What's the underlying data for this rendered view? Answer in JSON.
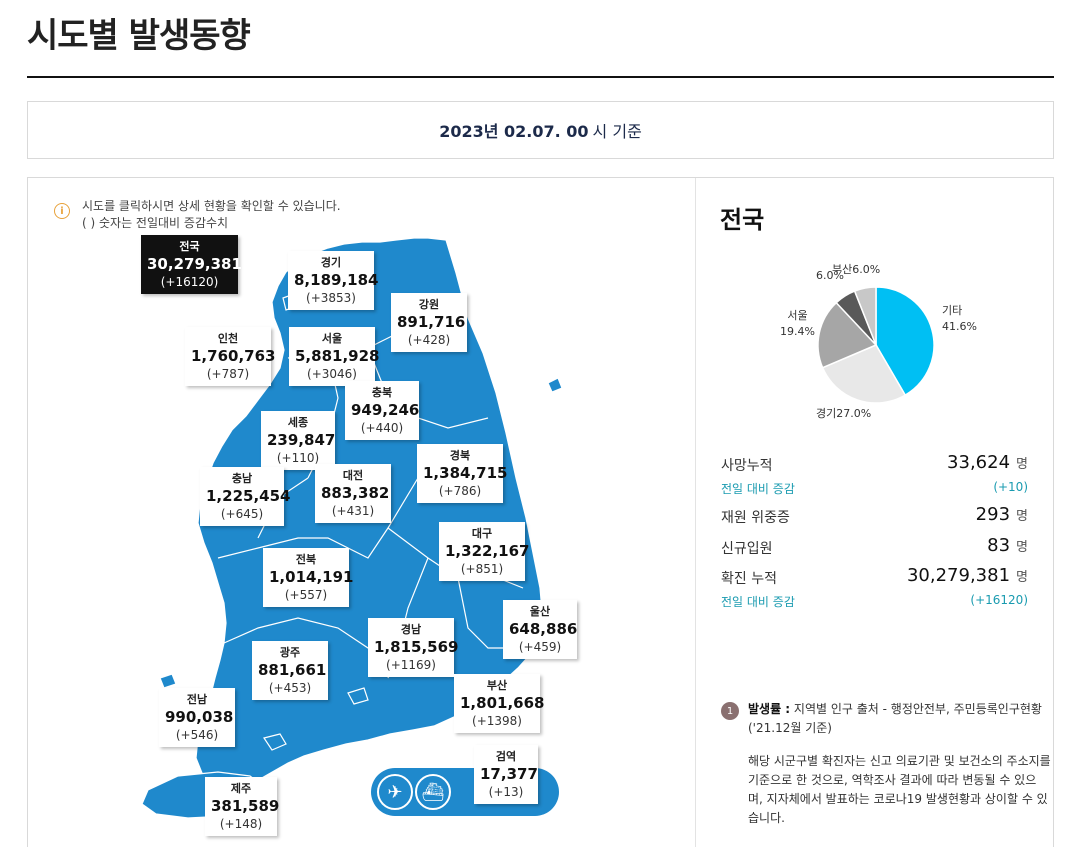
{
  "page_title": "시도별 발생동향",
  "date": {
    "value": "2023년 02.07. 00",
    "suffix": "시 기준"
  },
  "notice": {
    "icon": "info-icon",
    "line1": "시도를 클릭하시면 상세 현황을 확인할 수 있습니다.",
    "line2": "( ) 숫자는 전일대비 증감수치"
  },
  "colors": {
    "map_fill": "#1f89cc",
    "map_border": "#ffffff",
    "accent_teal": "#1a9bb0"
  },
  "regions": {
    "national": {
      "name": "전국",
      "count": "30,279,381",
      "delta": "(+16120)"
    },
    "gyeonggi": {
      "name": "경기",
      "count": "8,189,184",
      "delta": "(+3853)"
    },
    "gangwon": {
      "name": "강원",
      "count": "891,716",
      "delta": "(+428)"
    },
    "incheon": {
      "name": "인천",
      "count": "1,760,763",
      "delta": "(+787)"
    },
    "seoul": {
      "name": "서울",
      "count": "5,881,928",
      "delta": "(+3046)"
    },
    "chungbuk": {
      "name": "충북",
      "count": "949,246",
      "delta": "(+440)"
    },
    "sejong": {
      "name": "세종",
      "count": "239,847",
      "delta": "(+110)"
    },
    "chungnam": {
      "name": "충남",
      "count": "1,225,454",
      "delta": "(+645)"
    },
    "daejeon": {
      "name": "대전",
      "count": "883,382",
      "delta": "(+431)"
    },
    "gyeongbuk": {
      "name": "경북",
      "count": "1,384,715",
      "delta": "(+786)"
    },
    "daegu": {
      "name": "대구",
      "count": "1,322,167",
      "delta": "(+851)"
    },
    "jeonbuk": {
      "name": "전북",
      "count": "1,014,191",
      "delta": "(+557)"
    },
    "ulsan": {
      "name": "울산",
      "count": "648,886",
      "delta": "(+459)"
    },
    "gwangju": {
      "name": "광주",
      "count": "881,661",
      "delta": "(+453)"
    },
    "gyeongnam": {
      "name": "경남",
      "count": "1,815,569",
      "delta": "(+1169)"
    },
    "busan": {
      "name": "부산",
      "count": "1,801,668",
      "delta": "(+1398)"
    },
    "jeonnam": {
      "name": "전남",
      "count": "990,038",
      "delta": "(+546)"
    },
    "quarantine": {
      "name": "검역",
      "count": "17,377",
      "delta": "(+13)"
    },
    "jeju": {
      "name": "제주",
      "count": "381,589",
      "delta": "(+148)"
    }
  },
  "transport_icons": [
    "airplane-icon",
    "ship-icon"
  ],
  "right_panel": {
    "title": "전국",
    "pie": {
      "slices": [
        {
          "label": "기타",
          "percent": "41.6%",
          "value": 41.6,
          "color": "#00bff3"
        },
        {
          "label": "경기",
          "percent": "27.0%",
          "value": 27.0,
          "color": "#e8e8e8"
        },
        {
          "label": "서울",
          "percent": "19.4%",
          "value": 19.4,
          "color": "#a6a6a6"
        },
        {
          "label": "",
          "percent": "6.0%",
          "value": 6.0,
          "color": "#595959"
        },
        {
          "label": "부산",
          "percent": "6.0%",
          "value": 6.0,
          "color": "#c8c8c8"
        }
      ]
    },
    "stats": {
      "deaths": {
        "label": "사망누적",
        "value": "33,624",
        "unit": "명",
        "sub_label": "전일 대비 증감",
        "sub_value": "(+10)"
      },
      "severe": {
        "label": "재원 위중증",
        "value": "293",
        "unit": "명"
      },
      "admitted": {
        "label": "신규입원",
        "value": "83",
        "unit": "명"
      },
      "confirmed": {
        "label": "확진 누적",
        "value": "30,279,381",
        "unit": "명",
        "sub_label": "전일 대비 증감",
        "sub_value": "(+16120)"
      }
    },
    "note": {
      "number": "1",
      "head_bold": "발생률 :",
      "head_text": " 지역별 인구 출처 - 행정안전부, 주민등록인구현황 ('21.12월 기준)",
      "body": "해당 시군구별 확진자는 신고 의료기관 및 보건소의 주소지를 기준으로 한 것으로, 역학조사 결과에 따라 변동될 수 있으며, 지자체에서 발표하는 코로나19 발생현황과 상이할 수 있습니다."
    }
  }
}
